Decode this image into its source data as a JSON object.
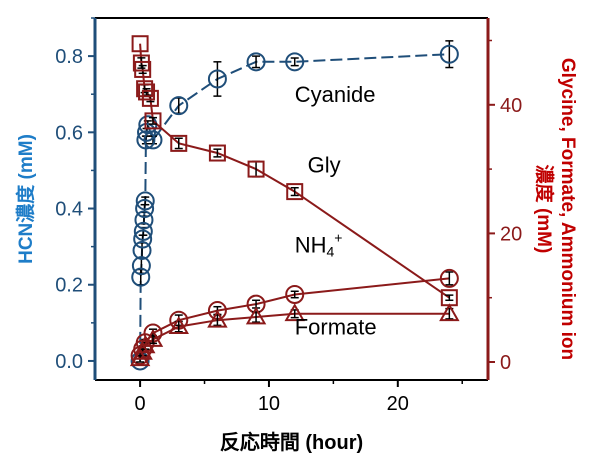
{
  "chart_data": {
    "type": "scatter",
    "title": "",
    "xlabel": "反応時間 (hour)",
    "xlim": [
      -3.5,
      27
    ],
    "xticks": [
      0,
      10,
      20
    ],
    "y_left": {
      "label": "HCN濃度 (mM)",
      "lim": [
        -0.05,
        0.9
      ],
      "ticks": [
        0.0,
        0.2,
        0.4,
        0.6,
        0.8
      ],
      "tick_labels": [
        "0.0",
        "0.2",
        "0.4",
        "0.6",
        "0.8"
      ],
      "color": "#1f4e79"
    },
    "y_right": {
      "label_line1": "Glycine, Formate, Ammonium ion",
      "label_line2": "濃度 (mM)",
      "lim": [
        -2.8,
        53.5
      ],
      "ticks": [
        0,
        20,
        40
      ],
      "tick_labels": [
        "0",
        "20",
        "40"
      ],
      "color": "#8b1a1a"
    },
    "series": [
      {
        "name": "Cyanide",
        "axis": "left",
        "marker": "circle",
        "color": "#1f4e79",
        "x": [
          0,
          0.05,
          0.1,
          0.15,
          0.2,
          0.25,
          0.3,
          0.35,
          0.4,
          0.45,
          0.5,
          0.6,
          1,
          3,
          6,
          9,
          12,
          24
        ],
        "y": [
          0.0,
          0.22,
          0.25,
          0.29,
          0.32,
          0.34,
          0.37,
          0.4,
          0.42,
          0.58,
          0.6,
          0.62,
          0.58,
          0.67,
          0.74,
          0.785,
          0.785,
          0.805
        ],
        "err": [
          0.0,
          0.02,
          0.02,
          0.02,
          0.01,
          0.01,
          0.01,
          0.01,
          0.01,
          0.01,
          0.01,
          0.01,
          0.01,
          0.02,
          0.045,
          0.015,
          0.01,
          0.035
        ]
      },
      {
        "name": "Gly",
        "axis": "right",
        "marker": "square",
        "color": "#8b1a1a",
        "x": [
          0,
          0.1,
          0.2,
          0.35,
          0.5,
          0.8,
          1,
          3,
          6,
          9,
          12,
          24
        ],
        "y": [
          49.5,
          46.5,
          45.5,
          42.5,
          42.0,
          41.0,
          37.5,
          34.0,
          32.5,
          30.0,
          26.5,
          10.0
        ],
        "err": [
          0,
          0.8,
          0.6,
          0.6,
          0.5,
          0.5,
          0.5,
          0.8,
          0.6,
          1.2,
          0.6,
          0.4
        ]
      },
      {
        "name": "NH4+",
        "axis": "right",
        "marker": "circle",
        "color": "#8b1a1a",
        "x": [
          0,
          0.2,
          0.4,
          1,
          3,
          6,
          9,
          12,
          24
        ],
        "y": [
          1.0,
          2.0,
          3.0,
          4.5,
          6.5,
          8.0,
          9.0,
          10.5,
          13.0
        ],
        "err": [
          0.5,
          0.5,
          0.5,
          0.6,
          0.8,
          0.6,
          0.6,
          0.5,
          1.0
        ]
      },
      {
        "name": "Formate",
        "axis": "right",
        "marker": "triangle",
        "color": "#8b1a1a",
        "x": [
          0,
          0.2,
          0.4,
          1,
          3,
          6,
          9,
          12,
          24
        ],
        "y": [
          0.5,
          1.5,
          2.5,
          3.5,
          5.5,
          6.5,
          7.0,
          7.5,
          7.5
        ],
        "err": [
          0.5,
          0.5,
          0.5,
          0.6,
          0.8,
          0.8,
          0.8,
          0.6,
          0.8
        ]
      }
    ],
    "annotations": [
      {
        "text": "Cyanide",
        "x": 12,
        "y_left": 0.68
      },
      {
        "text": "Gly",
        "x": 13,
        "y_left": 0.495
      },
      {
        "text": "NH4",
        "sup": "+",
        "x": 12,
        "y_left": 0.285
      },
      {
        "text": "Formate",
        "x": 12,
        "y_left": 0.07
      }
    ],
    "grid": false,
    "legend": "none"
  }
}
